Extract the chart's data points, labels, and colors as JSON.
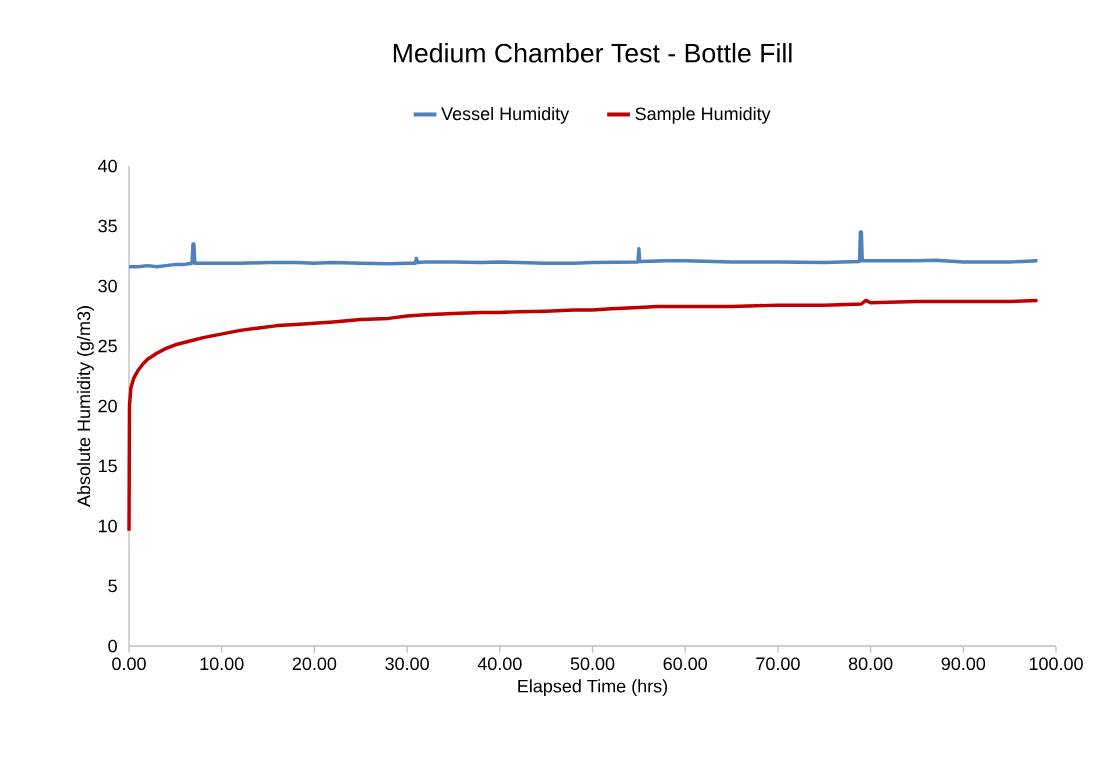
{
  "chart_data": {
    "type": "line",
    "title": "Medium Chamber Test - Bottle Fill",
    "xlabel": "Elapsed Time (hrs)",
    "ylabel": "Absolute Humidity (g/m3)",
    "series": [
      {
        "name": "Vessel Humidity",
        "color": "#4f81bd",
        "x": [
          0,
          1,
          2,
          3,
          4,
          5,
          6,
          6.8,
          6.9,
          7.0,
          7.1,
          8,
          10,
          12,
          15,
          18,
          20,
          22,
          25,
          28,
          30,
          30.9,
          31,
          31.1,
          32,
          35,
          38,
          40,
          45,
          48,
          50,
          54.9,
          55,
          55.1,
          58,
          60,
          65,
          70,
          75,
          78.8,
          78.9,
          79.0,
          79.1,
          80,
          85,
          87,
          90,
          95,
          98
        ],
        "values": [
          31.6,
          31.6,
          31.7,
          31.6,
          31.7,
          31.8,
          31.8,
          31.9,
          33.5,
          33.5,
          31.9,
          31.9,
          31.9,
          31.9,
          31.95,
          31.95,
          31.9,
          31.95,
          31.9,
          31.85,
          31.9,
          31.9,
          32.3,
          31.95,
          32.0,
          32.0,
          31.95,
          32.0,
          31.9,
          31.9,
          31.95,
          32.0,
          33.1,
          32.05,
          32.1,
          32.1,
          32.0,
          32.0,
          31.95,
          32.05,
          34.5,
          34.5,
          32.1,
          32.1,
          32.1,
          32.15,
          32.0,
          32.0,
          32.1
        ]
      },
      {
        "name": "Sample Humidity",
        "color": "#c00000",
        "x": [
          0,
          0.05,
          0.2,
          0.5,
          1,
          1.5,
          2,
          3,
          4,
          5,
          6,
          7,
          8,
          10,
          12,
          14,
          16,
          18,
          20,
          22,
          25,
          28,
          30,
          32,
          35,
          38,
          40,
          42,
          45,
          48,
          50,
          52,
          55,
          57,
          60,
          65,
          70,
          75,
          79,
          79.5,
          80,
          85,
          90,
          95,
          98
        ],
        "values": [
          9.6,
          20,
          21.5,
          22.3,
          23,
          23.5,
          23.9,
          24.4,
          24.8,
          25.1,
          25.3,
          25.5,
          25.7,
          26.0,
          26.3,
          26.5,
          26.7,
          26.8,
          26.9,
          27.0,
          27.2,
          27.3,
          27.5,
          27.6,
          27.7,
          27.8,
          27.8,
          27.85,
          27.9,
          28.0,
          28.0,
          28.1,
          28.2,
          28.3,
          28.3,
          28.3,
          28.4,
          28.4,
          28.5,
          28.8,
          28.6,
          28.7,
          28.7,
          28.7,
          28.8
        ]
      }
    ],
    "xlim": [
      0,
      100
    ],
    "ylim": [
      0,
      40
    ],
    "xticks": [
      {
        "value": 0,
        "label": "0.00"
      },
      {
        "value": 10,
        "label": "10.00"
      },
      {
        "value": 20,
        "label": "20.00"
      },
      {
        "value": 30,
        "label": "30.00"
      },
      {
        "value": 40,
        "label": "40.00"
      },
      {
        "value": 50,
        "label": "50.00"
      },
      {
        "value": 60,
        "label": "60.00"
      },
      {
        "value": 70,
        "label": "70.00"
      },
      {
        "value": 80,
        "label": "80.00"
      },
      {
        "value": 90,
        "label": "90.00"
      },
      {
        "value": 100,
        "label": "100.00"
      }
    ],
    "yticks": [
      0,
      5,
      10,
      15,
      20,
      25,
      30,
      35,
      40
    ],
    "legend": "top",
    "grid": false,
    "marker": "none",
    "line_style": "solid"
  }
}
